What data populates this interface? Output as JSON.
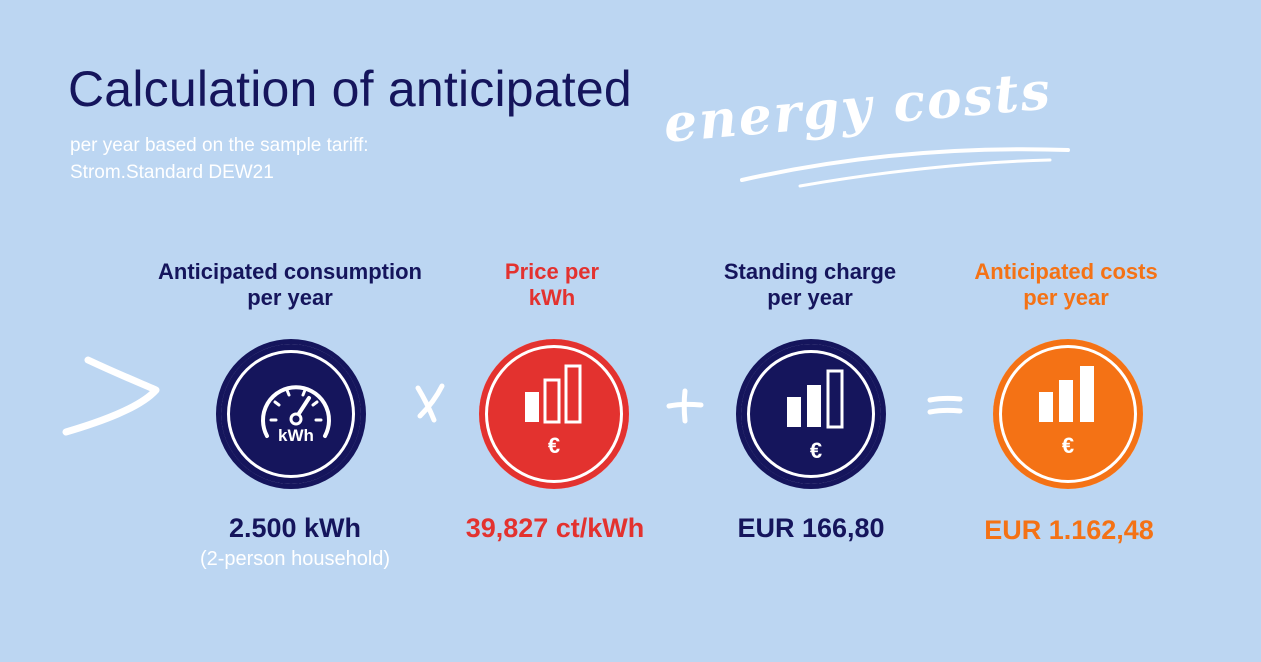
{
  "header": {
    "title": "Calculation of anticipated",
    "script_title": "energy costs",
    "subtitle_line1": "per year based on the sample tariff:",
    "subtitle_line2": "Strom.Standard DEW21"
  },
  "columns": [
    {
      "label_line1": "Anticipated consumption",
      "label_line2": "per year",
      "icon": "speedometer-icon",
      "icon_text": "kWh",
      "value": "2.500 kWh",
      "note": "(2-person household)",
      "color": "#15155c"
    },
    {
      "label_line1": "Price per",
      "label_line2": "kWh",
      "icon": "bar-chart-euro-icon",
      "icon_text": "€",
      "value": "39,827 ct/kWh",
      "color": "#e3322f"
    },
    {
      "label_line1": "Standing charge",
      "label_line2": "per year",
      "icon": "bar-chart-euro-icon",
      "icon_text": "€",
      "value": "EUR 166,80",
      "color": "#15155c"
    },
    {
      "label_line1": "Anticipated costs",
      "label_line2": "per year",
      "icon": "bar-chart-euro-icon",
      "icon_text": "€",
      "value": "EUR 1.162,48",
      "color": "#f47215"
    }
  ],
  "operators": [
    "x",
    "+",
    "="
  ],
  "colors": {
    "background": "#bcd6f2",
    "navy": "#15155c",
    "red": "#e3322f",
    "orange": "#f47215"
  }
}
